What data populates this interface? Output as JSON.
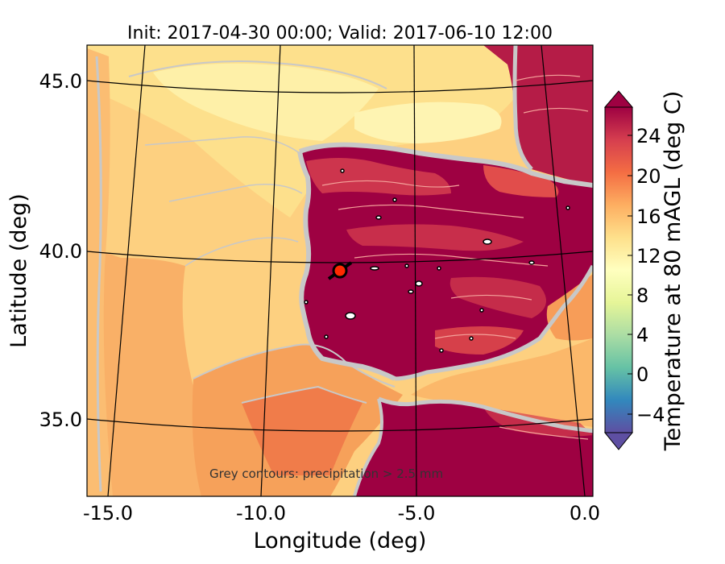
{
  "title": "Init: 2017-04-30 00:00; Valid: 2017-06-10 12:00",
  "xlabel": "Longitude (deg)",
  "ylabel": "Latitude (deg)",
  "x_ticks": [
    "-15.0",
    "-10.0",
    "-5.0",
    "0.0"
  ],
  "y_ticks": [
    "45.0",
    "40.0",
    "35.0"
  ],
  "colorbar": {
    "label": "Temperature at 80 mAGL (deg C)",
    "ticks": [
      "24",
      "20",
      "16",
      "12",
      "8",
      "4",
      "0",
      "−4"
    ],
    "tick_values": [
      24,
      20,
      16,
      12,
      8,
      4,
      0,
      -4
    ],
    "range": [
      -6,
      26
    ],
    "extend": "both",
    "colormap": "Spectral_r"
  },
  "annotation": "Grey contours: precipitation > 2.5 mm",
  "marker": {
    "lon": -7.5,
    "lat": 39.3,
    "color": "#ff2a00"
  },
  "colors": {
    "ocean_west": "#fdd080",
    "ocean_south_west": "#f7a45a",
    "north_cool": "#fef0a8",
    "land_hot": "#9e0142",
    "land_mountain": "#d53e4f",
    "contour": "#c8c8c8"
  }
}
